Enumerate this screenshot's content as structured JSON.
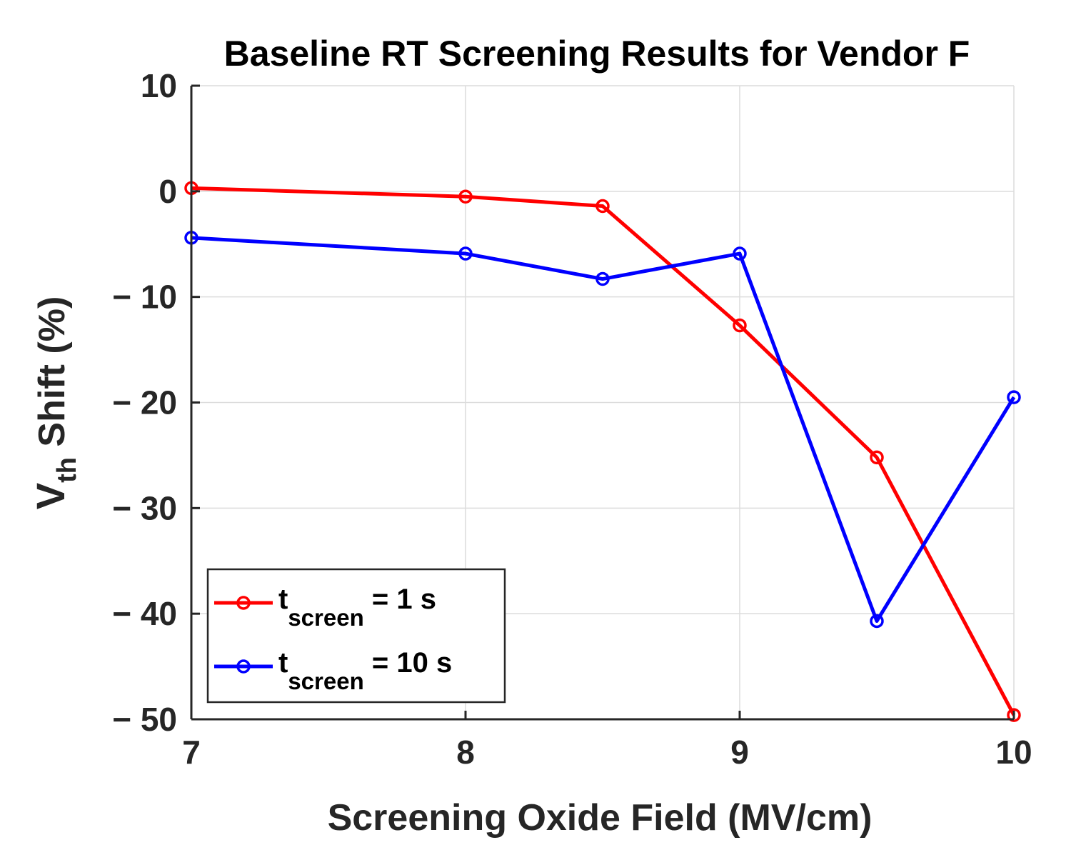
{
  "chart_data": {
    "type": "line",
    "title": "Baseline RT Screening Results for Vendor F",
    "xlabel": "Screening Oxide Field (MV/cm)",
    "ylabel_main": "V",
    "ylabel_sub": "th",
    "ylabel_rest": " Shift (%)",
    "xlim": [
      7,
      10
    ],
    "ylim": [
      -50,
      10
    ],
    "xticks": [
      7,
      8,
      9,
      10
    ],
    "yticks": [
      10,
      0,
      -10,
      -20,
      -30,
      -40,
      -50
    ],
    "xtick_labels": [
      "7",
      "8",
      "9",
      "10"
    ],
    "ytick_labels": [
      "10",
      "0",
      "− 10",
      "− 20",
      "− 30",
      "− 40",
      "− 50"
    ],
    "grid": true,
    "legend_position": "bottom-left",
    "series": [
      {
        "name": "t_screen = 1 s",
        "legend_main": "t",
        "legend_sub": "screen",
        "legend_rest": " = 1 s",
        "color": "#ff0000",
        "marker": "circle",
        "x": [
          7,
          8,
          8.5,
          9,
          9.5,
          10
        ],
        "y": [
          0.3,
          -0.5,
          -1.4,
          -12.7,
          -25.2,
          -49.6
        ]
      },
      {
        "name": "t_screen = 10 s",
        "legend_main": "t",
        "legend_sub": "screen",
        "legend_rest": " = 10 s",
        "color": "#0000ff",
        "marker": "circle",
        "x": [
          7,
          8,
          8.5,
          9,
          9.5,
          10
        ],
        "y": [
          -4.4,
          -5.9,
          -8.3,
          -5.9,
          -40.7,
          -19.5
        ]
      }
    ]
  }
}
